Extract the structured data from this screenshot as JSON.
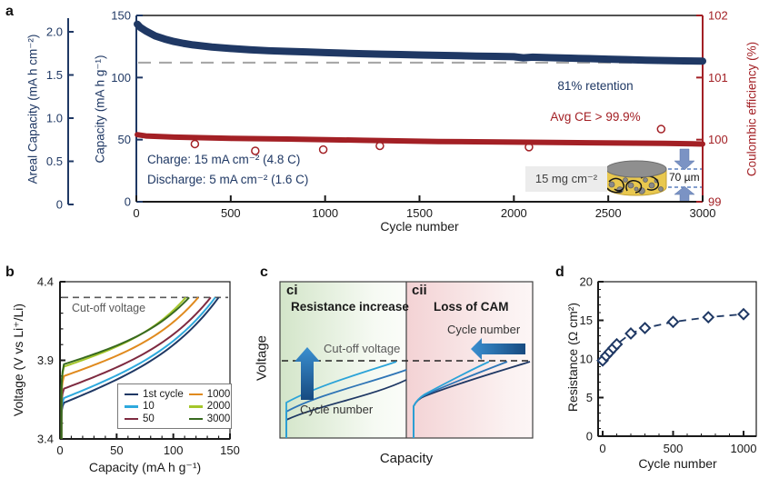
{
  "labels": {
    "panel_a": "a",
    "panel_b": "b",
    "panel_c": "c",
    "panel_d": "d",
    "a_xlabel": "Cycle number",
    "a_y_outer": "Areal Capacity (mA h cm⁻²)",
    "a_y_inner": "Capacity (mA h g⁻¹)",
    "a_y_right": "Coulombic efficiency (%)",
    "retention": "81% retention",
    "avg_ce": "Avg CE > 99.9%",
    "charge": "Charge: 15 mA cm⁻² (4.8 C)",
    "discharge": "Discharge: 5 mA cm⁻² (1.6 C)",
    "loading": "15 mg cm⁻²",
    "thickness": "70 µm",
    "b_xlabel": "Capacity (mA h g⁻¹)",
    "b_ylabel": "Voltage (V vs Li⁺/Li)",
    "b_cutoff": "Cut-off voltage",
    "ci": "ci",
    "ci_title": "Resistance increase",
    "ci_cutoff": "Cut-off voltage",
    "ci_arrow": "Cycle number",
    "cii": "cii",
    "cii_title": "Loss of CAM",
    "cii_arrow": "Cycle number",
    "c_xlabel": "Capacity",
    "c_ylabel": "Voltage",
    "d_xlabel": "Cycle number",
    "d_ylabel": "Resistance (Ω cm²)"
  },
  "colors": {
    "navy": "#1f3864",
    "red": "#a32025",
    "black": "#1a1a1a",
    "dash_gray": "#a8a8a8",
    "cutoff_gray": "#595959",
    "ci_green": "#d8e8cf",
    "cii_pink": "#f3d3d5",
    "arrow_dark": "#174a80",
    "arrow_light": "#3a8fd0"
  },
  "chart_data": [
    {
      "id": "a",
      "type": "line",
      "xlabel": "Cycle number",
      "x_ticks": [
        "0",
        "500",
        "1000",
        "1500",
        "2000",
        "2500",
        "3000"
      ],
      "x_range": [
        0,
        3000
      ],
      "y_capacity": {
        "label": "Capacity (mA h g⁻¹)",
        "range": [
          0,
          150
        ],
        "ticks": [
          "0",
          "50",
          "100",
          "150"
        ]
      },
      "y_areal": {
        "label": "Areal Capacity (mA h cm⁻²)",
        "range": [
          0,
          2.16
        ],
        "ticks": [
          "0",
          "0.5",
          "1.0",
          "1.5",
          "2.0"
        ]
      },
      "y_ce": {
        "label": "Coulombic efficiency (%)",
        "range": [
          99,
          102
        ],
        "ticks": [
          "99",
          "100",
          "101",
          "102"
        ]
      },
      "retention_line_capacity": 112,
      "series": [
        {
          "name": "discharge-capacity",
          "axis": "capacity",
          "color": "#1f3864",
          "width": 8,
          "points": [
            [
              5,
              143
            ],
            [
              20,
              140.5
            ],
            [
              50,
              137.5
            ],
            [
              100,
              133.5
            ],
            [
              150,
              131
            ],
            [
              200,
              129
            ],
            [
              250,
              127.5
            ],
            [
              300,
              126.3
            ],
            [
              400,
              124.6
            ],
            [
              500,
              123.4
            ],
            [
              600,
              122.4
            ],
            [
              700,
              121.6
            ],
            [
              800,
              121.1
            ],
            [
              900,
              120.6
            ],
            [
              1000,
              120.1
            ],
            [
              1100,
              119.6
            ],
            [
              1200,
              119.2
            ],
            [
              1300,
              118.8
            ],
            [
              1400,
              118.5
            ],
            [
              1500,
              118.2
            ],
            [
              1600,
              117.9
            ],
            [
              1700,
              117.6
            ],
            [
              1800,
              117.3
            ],
            [
              1900,
              117.1
            ],
            [
              2000,
              116.8
            ],
            [
              2050,
              115.9
            ],
            [
              2100,
              116.4
            ],
            [
              2200,
              116.0
            ],
            [
              2300,
              115.6
            ],
            [
              2400,
              115.2
            ],
            [
              2500,
              114.8
            ],
            [
              2600,
              114.4
            ],
            [
              2700,
              114.0
            ],
            [
              2800,
              113.7
            ],
            [
              2900,
              113.4
            ],
            [
              3000,
              113.2
            ]
          ]
        },
        {
          "name": "coulombic-efficiency",
          "axis": "ce",
          "color": "#a32025",
          "width": 6,
          "points": [
            [
              5,
              100.08
            ],
            [
              50,
              100.06
            ],
            [
              200,
              100.04
            ],
            [
              500,
              100.02
            ],
            [
              800,
              100.01
            ],
            [
              1200,
              99.99
            ],
            [
              1600,
              99.97
            ],
            [
              2000,
              99.96
            ],
            [
              2400,
              99.95
            ],
            [
              2800,
              99.94
            ],
            [
              3000,
              99.93
            ]
          ]
        }
      ],
      "ce_outliers": [
        [
          310,
          99.93
        ],
        [
          630,
          99.82
        ],
        [
          990,
          99.84
        ],
        [
          1290,
          99.9
        ],
        [
          2080,
          99.88
        ],
        [
          2780,
          100.17
        ]
      ],
      "annotations": [
        "81% retention",
        "Avg CE > 99.9%",
        "Charge: 15 mA cm⁻² (4.8 C)",
        "Discharge: 5 mA cm⁻² (1.6 C)",
        "15 mg cm⁻²",
        "70 µm"
      ]
    },
    {
      "id": "b",
      "type": "line",
      "xlabel": "Capacity (mA h g⁻¹)",
      "ylabel": "Voltage (V vs Li⁺/Li)",
      "x_range": [
        0,
        150
      ],
      "x_ticks": [
        "0",
        "50",
        "100",
        "150"
      ],
      "y_range": [
        3.4,
        4.4
      ],
      "y_ticks": [
        "3.4",
        "3.9",
        "4.4"
      ],
      "cutoff_voltage": 4.3,
      "cutoff_label": "Cut-off voltage",
      "curves": [
        {
          "label": "1st cycle",
          "color": "#1f3864",
          "start_v": 3.63,
          "end_capacity": 140
        },
        {
          "label": "10",
          "color": "#2ea9dd",
          "start_v": 3.66,
          "end_capacity": 137
        },
        {
          "label": "50",
          "color": "#7e2a40",
          "start_v": 3.72,
          "end_capacity": 133
        },
        {
          "label": "1000",
          "color": "#e08a1e",
          "start_v": 3.8,
          "end_capacity": 122
        },
        {
          "label": "2000",
          "color": "#a4c62a",
          "start_v": 3.86,
          "end_capacity": 111
        },
        {
          "label": "3000",
          "color": "#386a1f",
          "start_v": 3.875,
          "end_capacity": 114
        }
      ],
      "legend_position": "lower right"
    },
    {
      "id": "c",
      "type": "line",
      "schematic": true,
      "xlabel": "Capacity",
      "ylabel": "Voltage",
      "panels": [
        {
          "label": "ci",
          "title": "Resistance increase",
          "cutoff_label": "Cut-off voltage",
          "arrow": "up",
          "arrow_label": "Cycle number",
          "background": "green-fade"
        },
        {
          "label": "cii",
          "title": "Loss of CAM",
          "arrow": "left",
          "arrow_label": "Cycle number",
          "background": "pink-fade"
        }
      ]
    },
    {
      "id": "d",
      "type": "scatter",
      "xlabel": "Cycle number",
      "ylabel": "Resistance (Ω cm²)",
      "x_range": [
        0,
        1000
      ],
      "x_ticks": [
        "0",
        "500",
        "1000"
      ],
      "y_range": [
        0,
        20
      ],
      "y_ticks": [
        "0",
        "5",
        "10",
        "15",
        "20"
      ],
      "marker": "open-diamond",
      "line_style": "dashed",
      "color": "#1f3864",
      "points": [
        [
          0,
          9.8
        ],
        [
          25,
          10.4
        ],
        [
          50,
          10.9
        ],
        [
          75,
          11.4
        ],
        [
          100,
          11.9
        ],
        [
          200,
          13.3
        ],
        [
          300,
          14.0
        ],
        [
          500,
          14.8
        ],
        [
          750,
          15.4
        ],
        [
          1000,
          15.8
        ]
      ]
    }
  ]
}
